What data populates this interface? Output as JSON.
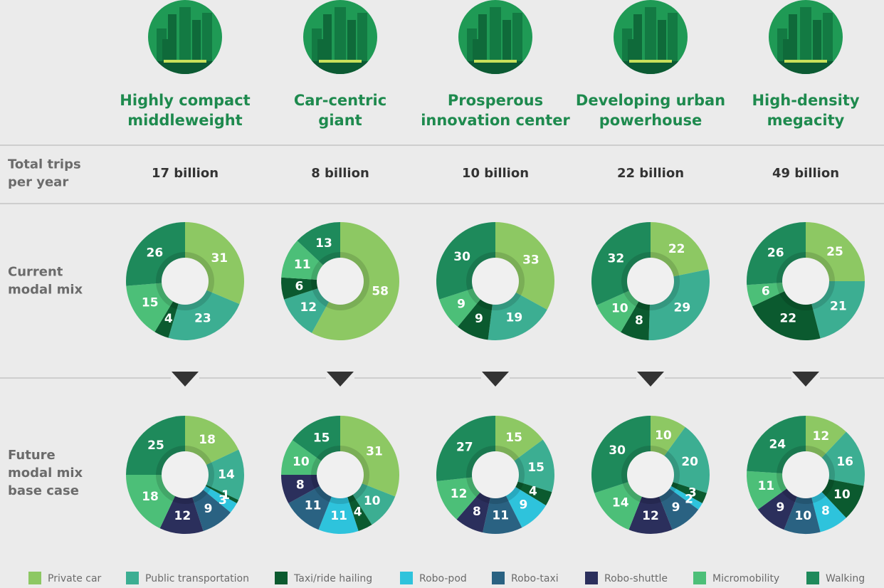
{
  "chart_data": {
    "type": "donut-grid",
    "categories": [
      "Private car",
      "Public transportation",
      "Taxi/ride hailing",
      "Robo-pod",
      "Robo-taxi",
      "Robo-shuttle",
      "Micromobility",
      "Walking"
    ],
    "colors": [
      "#8dc863",
      "#3cae92",
      "#0b5a2f",
      "#2ec3dc",
      "#2a6282",
      "#2b2f5c",
      "#4cbf78",
      "#1e8a5b"
    ],
    "row_labels": {
      "trips": [
        "Total trips",
        "per year"
      ],
      "current": [
        "Current",
        "modal mix"
      ],
      "future": [
        "Future",
        "modal mix",
        "base case"
      ]
    },
    "columns": [
      {
        "title": [
          "Highly compact",
          "middleweight"
        ],
        "trips": "17 billion",
        "current": [
          31,
          23,
          4,
          null,
          null,
          null,
          15,
          26
        ],
        "future": [
          18,
          14,
          1,
          3,
          9,
          12,
          18,
          25
        ]
      },
      {
        "title": [
          "Car-centric",
          "giant"
        ],
        "trips": "8 billion",
        "current": [
          58,
          12,
          6,
          null,
          null,
          null,
          11,
          13
        ],
        "future": [
          31,
          10,
          4,
          11,
          11,
          8,
          10,
          15
        ]
      },
      {
        "title": [
          "Prosperous",
          "innovation center"
        ],
        "trips": "10 billion",
        "current": [
          33,
          19,
          9,
          null,
          null,
          null,
          9,
          30
        ],
        "future": [
          15,
          15,
          4,
          9,
          11,
          8,
          12,
          27
        ]
      },
      {
        "title": [
          "Developing urban",
          "powerhouse"
        ],
        "trips": "22 billion",
        "current": [
          22,
          29,
          8,
          null,
          null,
          null,
          10,
          32
        ],
        "future": [
          10,
          20,
          3,
          2,
          9,
          12,
          14,
          30
        ]
      },
      {
        "title": [
          "High-density",
          "megacity"
        ],
        "trips": "49 billion",
        "current": [
          25,
          21,
          22,
          null,
          null,
          null,
          6,
          26
        ],
        "future": [
          12,
          16,
          10,
          8,
          10,
          9,
          11,
          24
        ]
      }
    ]
  }
}
